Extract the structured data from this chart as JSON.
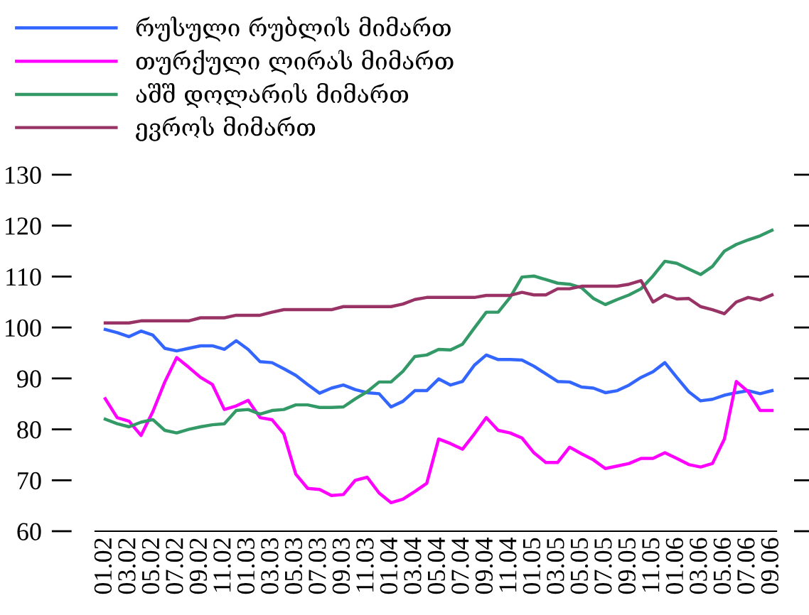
{
  "chart_data": {
    "type": "line",
    "categories": [
      "01.02",
      null,
      "03.02",
      null,
      "05.02",
      null,
      "07.02",
      null,
      "09.02",
      null,
      "11.02",
      null,
      "01.03",
      null,
      "03.03",
      null,
      "05.03",
      null,
      "07.03",
      null,
      "09.03",
      null,
      "11.03",
      null,
      "01.04",
      null,
      "03.04",
      null,
      "05.04",
      null,
      "07.04",
      null,
      "09.04",
      null,
      "11.04",
      null,
      "01.05",
      null,
      "03.05",
      null,
      "05.05",
      null,
      "07.05",
      null,
      "09.05",
      null,
      "11.05",
      null,
      "01.06",
      null,
      "03.06",
      null,
      "05.06",
      null,
      "07.06",
      null,
      "09.06"
    ],
    "series": [
      {
        "name": "რუსული რუბლის მიმართ",
        "color": "#3366ff",
        "values": [
          99.6,
          99,
          98.2,
          99.3,
          98.5,
          95.9,
          95.4,
          95.9,
          96.4,
          96.4,
          95.7,
          97.4,
          95.7,
          93.3,
          93.1,
          91.9,
          90.6,
          88.8,
          87.1,
          88.1,
          88.7,
          87.8,
          87.2,
          87,
          84.4,
          85.5,
          87.6,
          87.6,
          89.9,
          88.7,
          89.4,
          92.6,
          94.6,
          93.7,
          93.7,
          93.6,
          92.4,
          90.9,
          89.4,
          89.3,
          88.3,
          88.1,
          87.2,
          87.6,
          88.7,
          90.2,
          91.3,
          93.1,
          90.2,
          87.4,
          85.6,
          85.9,
          86.7,
          87.2,
          87.6,
          87,
          87.6
        ]
      },
      {
        "name": "თურქული ლირას მიმართ",
        "color": "#ff00ff",
        "values": [
          86,
          82.3,
          81.6,
          78.8,
          83.5,
          89.3,
          94.1,
          92.2,
          90.2,
          88.8,
          83.9,
          84.6,
          85.7,
          82.3,
          81.9,
          79.1,
          71.2,
          68.4,
          68.2,
          67,
          67.2,
          70,
          70.6,
          67.5,
          65.6,
          66.3,
          67.8,
          69.4,
          78.1,
          77.2,
          76.1,
          79.1,
          82.3,
          79.8,
          79.3,
          78.3,
          75.4,
          73.5,
          73.5,
          76.5,
          75.2,
          74,
          72.3,
          72.8,
          73.3,
          74.3,
          74.3,
          75.4,
          74.3,
          73.1,
          72.6,
          73.3,
          78.1,
          89.4,
          87.4,
          83.7,
          83.7
        ]
      },
      {
        "name": "აშშ დოლარის მიმართ",
        "color": "#339966",
        "values": [
          82,
          81.1,
          80.5,
          81.4,
          81.9,
          79.8,
          79.3,
          80,
          80.5,
          80.9,
          81.1,
          83.7,
          83.9,
          83,
          83.7,
          83.9,
          84.8,
          84.8,
          84.3,
          84.3,
          84.4,
          86,
          87.4,
          89.3,
          89.3,
          91.4,
          94.3,
          94.6,
          95.7,
          95.6,
          96.7,
          99.9,
          103,
          103,
          105.9,
          109.9,
          110.1,
          109.4,
          108.7,
          108.5,
          107.8,
          105.7,
          104.5,
          105.5,
          106.4,
          107.6,
          110.1,
          113,
          112.6,
          111.5,
          110.4,
          112,
          115,
          116.3,
          117.2,
          118,
          119.1
        ]
      },
      {
        "name": "ევროს მიმართ",
        "color": "#993366",
        "values": [
          100.9,
          100.9,
          100.9,
          101.3,
          101.3,
          101.3,
          101.3,
          101.3,
          101.9,
          101.9,
          101.9,
          102.4,
          102.4,
          102.4,
          103,
          103.5,
          103.5,
          103.5,
          103.5,
          103.5,
          104.1,
          104.1,
          104.1,
          104.1,
          104.1,
          104.6,
          105.5,
          105.9,
          105.9,
          105.9,
          105.9,
          105.9,
          106.3,
          106.3,
          106.3,
          106.9,
          106.4,
          106.4,
          107.6,
          107.6,
          108.1,
          108.1,
          108.1,
          108.1,
          108.5,
          109.2,
          105,
          106.4,
          105.6,
          105.7,
          104.1,
          103.5,
          102.7,
          105,
          105.9,
          105.4,
          106.4
        ]
      }
    ],
    "ylim": [
      60,
      130
    ],
    "yticks": [
      60,
      70,
      80,
      90,
      100,
      110,
      120,
      130
    ],
    "grid": false,
    "legend": "top left",
    "marker": "none",
    "line_style": "solid"
  }
}
